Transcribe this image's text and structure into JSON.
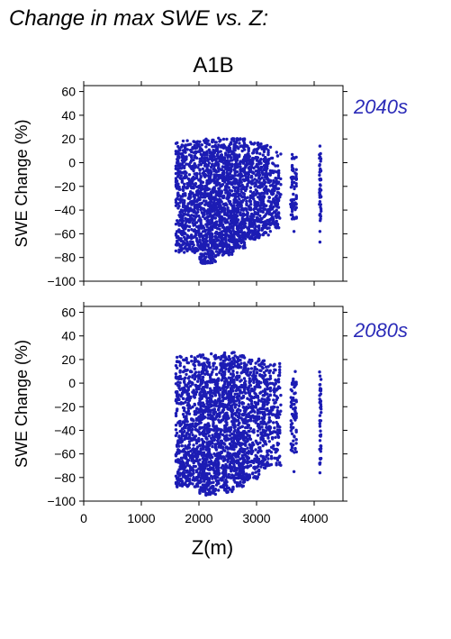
{
  "figure_title": "Change in max SWE vs. Z:",
  "scenario": "A1B",
  "colors": {
    "points": "#1c1cb4",
    "period_label": "#2a2ab8",
    "axis": "#000000"
  },
  "chart_data": [
    {
      "type": "scatter",
      "period": "2040s",
      "xlabel": "",
      "ylabel": "SWE Change (%)",
      "xlim": [
        0,
        4500
      ],
      "ylim": [
        -100,
        65
      ],
      "xticks": [
        0,
        1000,
        2000,
        3000,
        4000
      ],
      "yticks": [
        -100,
        -80,
        -60,
        -40,
        -20,
        0,
        20,
        40,
        60
      ],
      "x_tick_labels_shown": false,
      "grid": false,
      "point_bands": [
        {
          "xmin": 1600,
          "xmax": 2000,
          "ymin": -76,
          "ymax": 19,
          "n": 520
        },
        {
          "xmin": 2000,
          "xmax": 2300,
          "ymin": -85,
          "ymax": 20,
          "n": 520
        },
        {
          "xmin": 2300,
          "xmax": 2600,
          "ymin": -78,
          "ymax": 21,
          "n": 520
        },
        {
          "xmin": 2600,
          "xmax": 2800,
          "ymin": -72,
          "ymax": 21,
          "n": 340
        },
        {
          "xmin": 2800,
          "xmax": 3050,
          "ymin": -65,
          "ymax": 18,
          "n": 300
        },
        {
          "xmin": 3050,
          "xmax": 3250,
          "ymin": -62,
          "ymax": 17,
          "n": 200
        },
        {
          "xmin": 3250,
          "xmax": 3420,
          "ymin": -55,
          "ymax": 10,
          "n": 110
        },
        {
          "xmin": 3590,
          "xmax": 3700,
          "ymin": -48,
          "ymax": 9,
          "n": 70
        },
        {
          "xmin": 4090,
          "xmax": 4120,
          "ymin": -50,
          "ymax": 8,
          "n": 45
        }
      ],
      "outliers": [
        {
          "x": 3650,
          "y": -58
        },
        {
          "x": 4100,
          "y": 14
        },
        {
          "x": 4100,
          "y": -67
        },
        {
          "x": 4100,
          "y": -58
        }
      ]
    },
    {
      "type": "scatter",
      "period": "2080s",
      "xlabel": "Z(m)",
      "ylabel": "SWE Change (%)",
      "xlim": [
        0,
        4500
      ],
      "ylim": [
        -100,
        65
      ],
      "xticks": [
        0,
        1000,
        2000,
        3000,
        4000
      ],
      "yticks": [
        -100,
        -80,
        -60,
        -40,
        -20,
        0,
        20,
        40,
        60
      ],
      "x_tick_labels_shown": true,
      "grid": false,
      "point_bands": [
        {
          "xmin": 1600,
          "xmax": 2000,
          "ymin": -88,
          "ymax": 23,
          "n": 520
        },
        {
          "xmin": 2000,
          "xmax": 2300,
          "ymin": -95,
          "ymax": 25,
          "n": 520
        },
        {
          "xmin": 2300,
          "xmax": 2600,
          "ymin": -93,
          "ymax": 26,
          "n": 520
        },
        {
          "xmin": 2600,
          "xmax": 2800,
          "ymin": -88,
          "ymax": 26,
          "n": 340
        },
        {
          "xmin": 2800,
          "xmax": 3050,
          "ymin": -82,
          "ymax": 24,
          "n": 300
        },
        {
          "xmin": 3050,
          "xmax": 3250,
          "ymin": -72,
          "ymax": 22,
          "n": 200
        },
        {
          "xmin": 3250,
          "xmax": 3420,
          "ymin": -70,
          "ymax": 17,
          "n": 110
        },
        {
          "xmin": 3590,
          "xmax": 3700,
          "ymin": -60,
          "ymax": 13,
          "n": 70
        },
        {
          "xmin": 4090,
          "xmax": 4120,
          "ymin": -70,
          "ymax": 10,
          "n": 45
        }
      ],
      "outliers": [
        {
          "x": 3650,
          "y": -75
        },
        {
          "x": 4100,
          "y": -76
        }
      ]
    }
  ]
}
